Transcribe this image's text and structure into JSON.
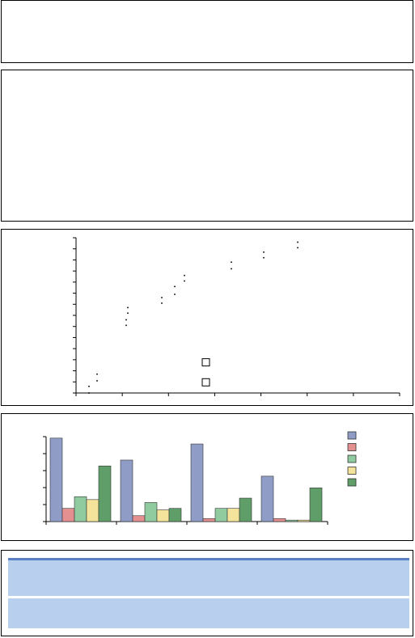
{
  "panels": [
    {
      "id": "empty-panel-1"
    },
    {
      "id": "empty-panel-2"
    },
    {
      "id": "scatter-panel"
    },
    {
      "id": "bar-panel"
    },
    {
      "id": "table-panel"
    }
  ],
  "chart_data": [
    {
      "type": "scatter",
      "title": "",
      "xlabel": "",
      "ylabel": "",
      "xlim": [
        0,
        20
      ],
      "ylim": [
        0,
        14
      ],
      "x": [
        0.8,
        1.3,
        0.8,
        1.3,
        3.1,
        3.1,
        3.2,
        3.2,
        5.3,
        5.3,
        6.1,
        6.1,
        6.7,
        6.7,
        9.6,
        9.6,
        11.6,
        11.6,
        13.7,
        13.7
      ],
      "y": [
        0.0,
        1.1,
        0.6,
        1.7,
        6.1,
        6.6,
        7.2,
        7.7,
        8.1,
        8.6,
        8.9,
        9.6,
        10.1,
        10.6,
        11.2,
        11.8,
        12.2,
        12.7,
        13.1,
        13.6
      ],
      "open_markers": [
        {
          "x": 8.0,
          "y": 1.0
        },
        {
          "x": 8.0,
          "y": 2.8
        }
      ],
      "grid": false,
      "legend": false
    },
    {
      "type": "bar",
      "title": "",
      "categories": [
        "",
        "",
        "",
        ""
      ],
      "series": [
        {
          "color": "#8e9cc6",
          "values": [
            5.7,
            4.2,
            5.3,
            3.1
          ]
        },
        {
          "color": "#e49090",
          "values": [
            0.9,
            0.4,
            0.2,
            0.2
          ]
        },
        {
          "color": "#8fcb9f",
          "values": [
            1.7,
            1.3,
            0.9,
            0.1
          ]
        },
        {
          "color": "#f4e39a",
          "values": [
            1.5,
            0.8,
            0.9,
            0.1
          ]
        },
        {
          "color": "#5f9e68",
          "values": [
            3.8,
            0.9,
            1.6,
            2.3
          ]
        }
      ],
      "ylim": [
        0,
        5.8
      ],
      "legend": "right",
      "grid": false
    }
  ],
  "table": {
    "header_color": "#5b7fc4",
    "row_color": "#b8cfee",
    "rows": [
      {},
      {}
    ]
  }
}
